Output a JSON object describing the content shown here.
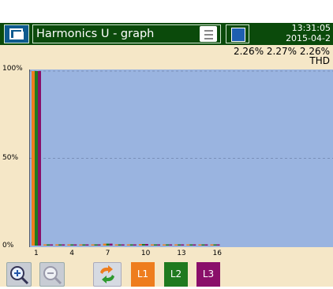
{
  "header": {
    "title": "Harmonics U - graph",
    "time": "13:31:05",
    "date": "2015-04-2"
  },
  "thd": {
    "values": [
      "2.26%",
      "2.27%",
      "2.26%"
    ],
    "label": "THD"
  },
  "chart_data": {
    "type": "bar",
    "title": "",
    "xlabel": "",
    "ylabel": "",
    "ylim": [
      0,
      100
    ],
    "y_ticks": [
      "100%",
      "50%",
      "0%"
    ],
    "x_tick_labels": [
      "1",
      "4",
      "7",
      "10",
      "13",
      "16"
    ],
    "categories": [
      1,
      2,
      3,
      4,
      5,
      6,
      7,
      8,
      9,
      10,
      11,
      12,
      13,
      14,
      15,
      16
    ],
    "series": [
      {
        "name": "L1",
        "color": "#ee7d1e",
        "values": [
          100,
          0.3,
          0.3,
          0.6,
          0.5,
          0.3,
          1.1,
          0.3,
          0.4,
          0.9,
          0.3,
          0.2,
          0.3,
          0.2,
          0.4,
          0.2
        ]
      },
      {
        "name": "L2",
        "color": "#1f7a1f",
        "values": [
          100,
          0.3,
          0.3,
          0.6,
          0.5,
          0.3,
          1.1,
          0.3,
          0.4,
          0.9,
          0.3,
          0.2,
          0.3,
          0.2,
          0.4,
          0.2
        ]
      },
      {
        "name": "L3",
        "color": "#8a0f6a",
        "values": [
          100,
          0.3,
          0.3,
          0.6,
          0.5,
          0.3,
          1.1,
          0.3,
          0.4,
          0.9,
          0.3,
          0.2,
          0.3,
          0.2,
          0.4,
          0.2
        ]
      }
    ],
    "grid": true
  },
  "toolbar": {
    "buttons": [
      {
        "label": "L1",
        "color": "#ee7d1e"
      },
      {
        "label": "L2",
        "color": "#1f7a1f"
      },
      {
        "label": "L3",
        "color": "#8a0f6a"
      }
    ]
  }
}
